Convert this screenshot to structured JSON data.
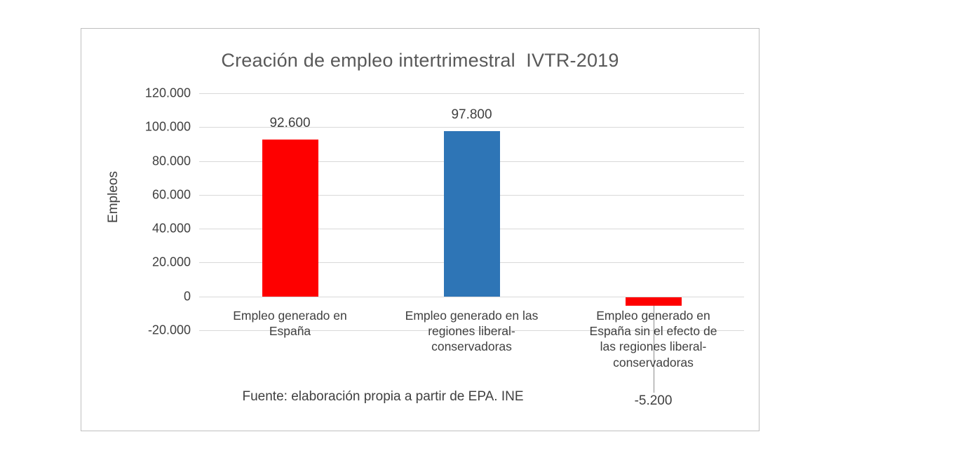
{
  "chart_data": {
    "type": "bar",
    "title": "Creación de empleo intertrimestral  IVTR-2019",
    "xlabel": "",
    "ylabel": "Empleos",
    "ylim": [
      -20000,
      120000
    ],
    "ytick_step": 20000,
    "ytick_values": [
      120000,
      100000,
      80000,
      60000,
      40000,
      20000,
      0,
      -20000
    ],
    "ytick_labels": [
      "120.000",
      "100.000",
      "80.000",
      "60.000",
      "40.000",
      "20.000",
      "0",
      "-20.000"
    ],
    "categories": [
      "Empleo generado en España",
      "Empleo generado en las regiones liberal-conservadoras",
      "Empleo generado en España sin el efecto de las regiones liberal-conservadoras"
    ],
    "category_labels": [
      "Empleo generado en\nEspaña",
      "Empleo generado en las\nregiones liberal-\nconservadoras",
      "Empleo generado en\nEspaña sin el efecto de\nlas regiones liberal-\nconservadoras"
    ],
    "values": [
      92600,
      97800,
      -5200
    ],
    "data_labels": [
      "92.600",
      "97.800",
      "-5.200"
    ],
    "series_colors": [
      "#fe0000",
      "#2e75b6",
      "#fe0000"
    ],
    "grid": true,
    "legend": false
  },
  "colors": {
    "red": "#fe0000",
    "blue": "#2e75b6",
    "gridline": "#d9d9d9",
    "leader_line": "#8c8c8c",
    "text": "#404040",
    "title": "#595959",
    "frame_border": "#bfbfbf"
  },
  "footer": {
    "source": "Fuente: elaboración propia a partir de EPA. INE"
  }
}
